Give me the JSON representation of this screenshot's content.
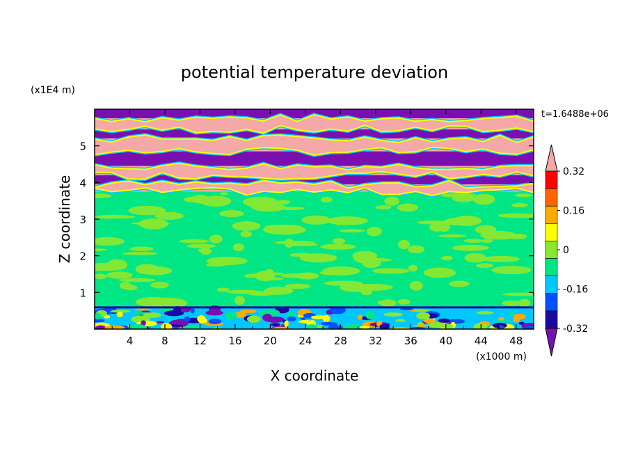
{
  "chart_data": {
    "type": "heatmap",
    "title": "potential temperature deviation",
    "xlabel": "X coordinate",
    "ylabel": "Z coordinate",
    "x_unit": "(x1000 m)",
    "y_unit": "(x1E4 m)",
    "time_label": "t=1.6488e+06",
    "xlim": [
      0,
      50
    ],
    "ylim": [
      0,
      6
    ],
    "x_ticks": [
      4,
      8,
      12,
      16,
      20,
      24,
      28,
      32,
      36,
      40,
      44,
      48
    ],
    "y_ticks": [
      1,
      2,
      3,
      4,
      5
    ],
    "colorbar": {
      "levels": [
        -0.4,
        -0.32,
        -0.24,
        -0.16,
        -0.08,
        0,
        0.08,
        0.16,
        0.24,
        0.32,
        0.4
      ],
      "tick_labels": [
        "0.32",
        "0.16",
        "0",
        "-0.16",
        "-0.32"
      ],
      "tick_values": [
        0.32,
        0.16,
        0,
        -0.16,
        -0.32
      ],
      "colors": [
        "#7a0fb0",
        "#1a0aa0",
        "#0050ff",
        "#00c8ff",
        "#00e685",
        "#88e830",
        "#ffff00",
        "#ffaa00",
        "#ff6400",
        "#ff0000",
        "#f4a8a8"
      ]
    },
    "bands": [
      {
        "z": [
          5.75,
          6.0
        ],
        "value": "low"
      },
      {
        "z": [
          5.45,
          5.75
        ],
        "value": "high"
      },
      {
        "z": [
          5.2,
          5.45
        ],
        "value": "low"
      },
      {
        "z": [
          4.85,
          5.2
        ],
        "value": "high"
      },
      {
        "z": [
          4.45,
          4.85
        ],
        "value": "low"
      },
      {
        "z": [
          4.2,
          4.45
        ],
        "value": "high"
      },
      {
        "z": [
          3.95,
          4.2
        ],
        "value": "low"
      },
      {
        "z": [
          3.75,
          3.95
        ],
        "value": "high"
      },
      {
        "z": [
          0.6,
          3.75
        ],
        "value": "near-zero"
      },
      {
        "z": [
          0.0,
          0.6
        ],
        "value": "mixed"
      }
    ]
  }
}
